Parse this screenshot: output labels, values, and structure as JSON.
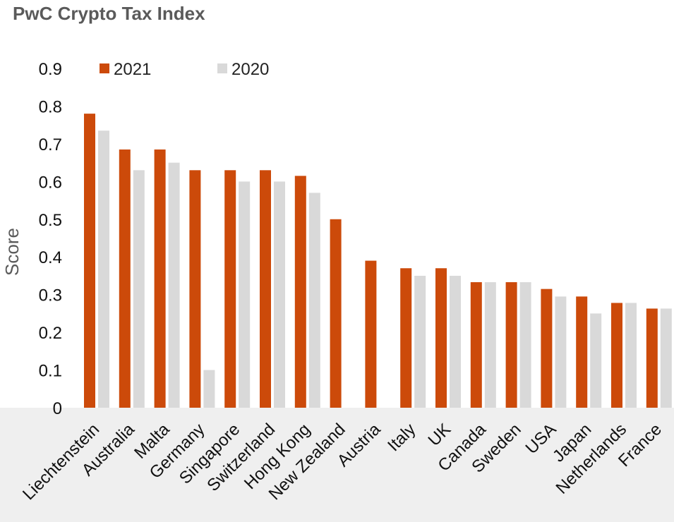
{
  "title": "PwC Crypto Tax Index",
  "chart_data": {
    "type": "bar",
    "title": "PwC Crypto Tax Index",
    "xlabel": "",
    "ylabel": "Score",
    "ylim": [
      0,
      0.9
    ],
    "yticks": [
      "0",
      "0.1",
      "0.2",
      "0.3",
      "0.4",
      "0.5",
      "0.6",
      "0.7",
      "0.8",
      "0.9"
    ],
    "legend_position": "top",
    "categories": [
      "Liechtenstein",
      "Australia",
      "Malta",
      "Germany",
      "Singapore",
      "Switzerland",
      "Hong Kong",
      "New Zealand",
      "Austria",
      "Italy",
      "UK",
      "Canada",
      "Sweden",
      "USA",
      "Japan",
      "Netherlands",
      "France"
    ],
    "series": [
      {
        "name": "2021",
        "color": "#cc4a0a",
        "values": [
          0.78,
          0.685,
          0.685,
          0.63,
          0.63,
          0.63,
          0.615,
          0.5,
          0.39,
          0.37,
          0.37,
          0.333,
          0.333,
          0.315,
          0.295,
          0.278,
          0.263
        ]
      },
      {
        "name": "2020",
        "color": "#d9d9d9",
        "values": [
          0.735,
          0.63,
          0.65,
          0.1,
          0.6,
          0.6,
          0.57,
          null,
          null,
          0.35,
          0.35,
          0.333,
          0.333,
          0.295,
          0.25,
          0.278,
          0.263
        ]
      }
    ]
  }
}
